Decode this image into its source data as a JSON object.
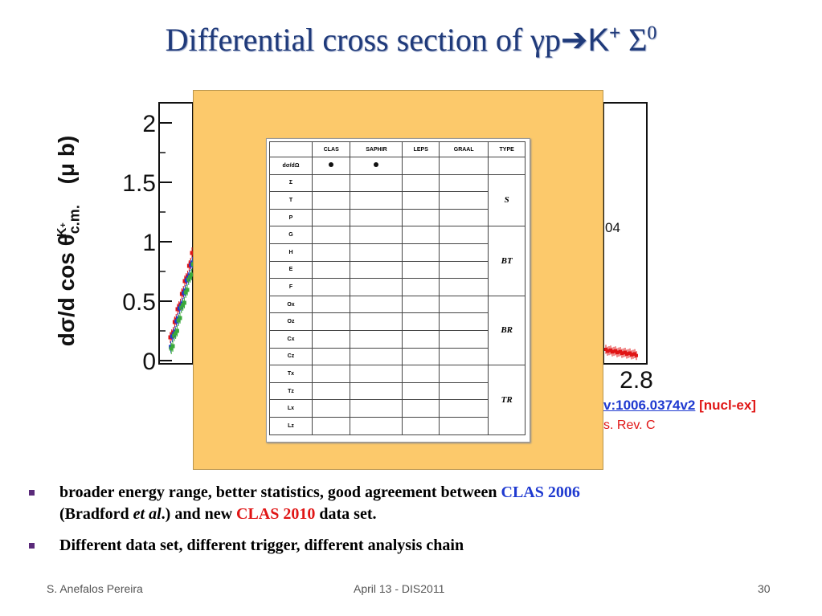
{
  "title": {
    "text": "Differential cross section of γp",
    "arrow": "➔",
    "particles": "K",
    "kplus": "+",
    "sigma": " Σ",
    "zero": "0"
  },
  "plot": {
    "y_ticks": [
      "0",
      "0.5",
      "1",
      "1.5",
      "2"
    ],
    "x_tick": "2.8",
    "ylabel": {
      "main": "dσ/d cos θ",
      "sub": "c.m.",
      "sup": "K",
      "supsup": "+",
      "unit": " (μ b)"
    },
    "partial_label": "04"
  },
  "reference": {
    "arxiv": "v:1006.0374v2",
    "category": "[nucl-ex]",
    "journal": "s. Rev. C"
  },
  "table": {
    "headers": [
      "",
      "CLAS",
      "SAPHIR",
      "LEPS",
      "GRAAL",
      "TYPE"
    ],
    "rows": [
      {
        "obs": "dσ/dΩ",
        "clas": true,
        "saphir": true
      },
      {
        "obs": "Σ"
      },
      {
        "obs": "T"
      },
      {
        "obs": "P"
      },
      {
        "obs": "G"
      },
      {
        "obs": "H"
      },
      {
        "obs": "E"
      },
      {
        "obs": "F"
      },
      {
        "obs": "Ox"
      },
      {
        "obs": "Oz"
      },
      {
        "obs": "Cx"
      },
      {
        "obs": "Cz"
      },
      {
        "obs": "Tx"
      },
      {
        "obs": "Tz"
      },
      {
        "obs": "Lx"
      },
      {
        "obs": "Lz"
      }
    ],
    "types": [
      "S",
      "BT",
      "BR",
      "TR"
    ]
  },
  "bullets": {
    "b1_part1": "broader energy range, better statistics, good agreement between ",
    "b1_clas2006": "CLAS 2006",
    "b1_part2": "(Bradford ",
    "b1_etal": "et al",
    "b1_part3": ".) and new ",
    "b1_clas2010": "CLAS 2010",
    "b1_part4": "  data set.",
    "b2": "Different data set, different trigger, different analysis chain"
  },
  "footer": {
    "author": "S. Anefalos Pereira",
    "date": "April 13 -  DIS2011",
    "page": "30"
  },
  "colors": {
    "title": "#1f3a7a",
    "overlay": "#fcc96b",
    "red": "#e01515",
    "blue": "#1f3ad0",
    "bullet": "#5a2a7a"
  }
}
